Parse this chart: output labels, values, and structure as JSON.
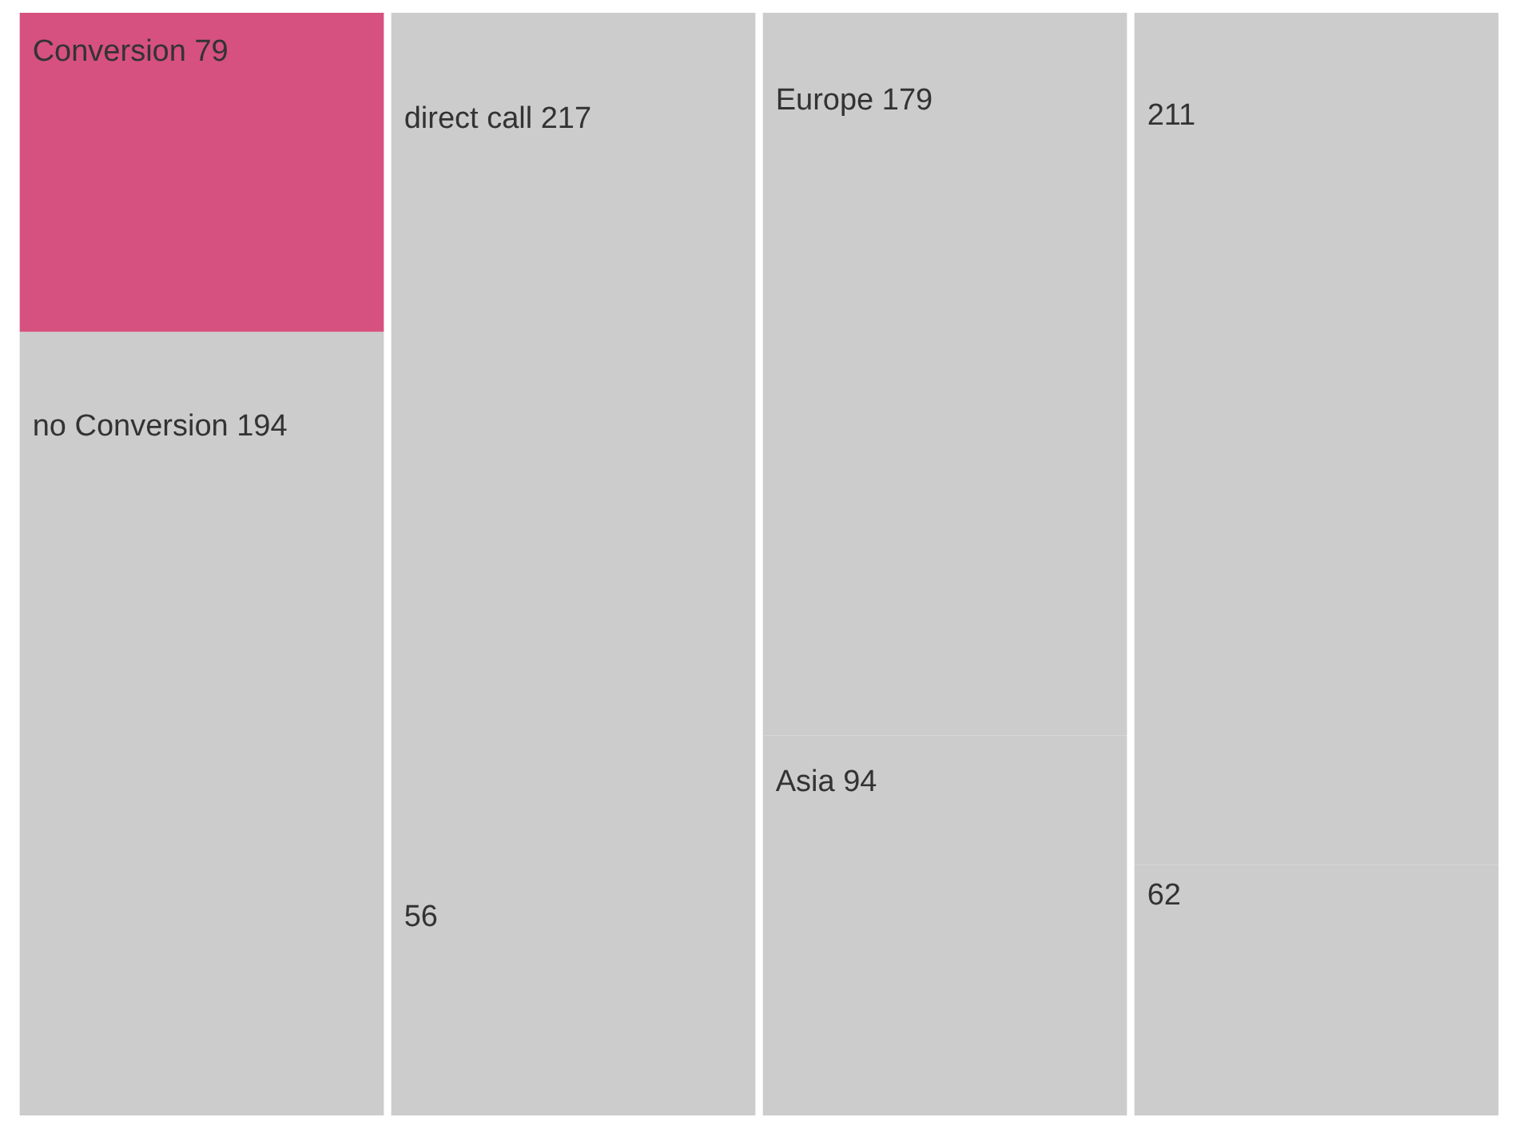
{
  "chart_data": {
    "type": "bar",
    "stacked": true,
    "categories": [
      null,
      null,
      null,
      null
    ],
    "series": [
      {
        "colors": [
          "#cccccc",
          "#cccccc",
          "#cccccc",
          "#cccccc"
        ],
        "values": [
          194,
          56,
          94,
          62
        ],
        "value_labels": [
          "no Conversion 194",
          "56",
          "Asia 94",
          "62"
        ]
      },
      {
        "colors": [
          "#d6517f",
          "#cccccc",
          "#cccccc",
          "#cccccc"
        ],
        "values": [
          79,
          217,
          179,
          211
        ],
        "value_labels": [
          "Conversion 79",
          "direct call 217",
          "Europe 179",
          "211"
        ]
      }
    ],
    "tick_labels": false
  }
}
